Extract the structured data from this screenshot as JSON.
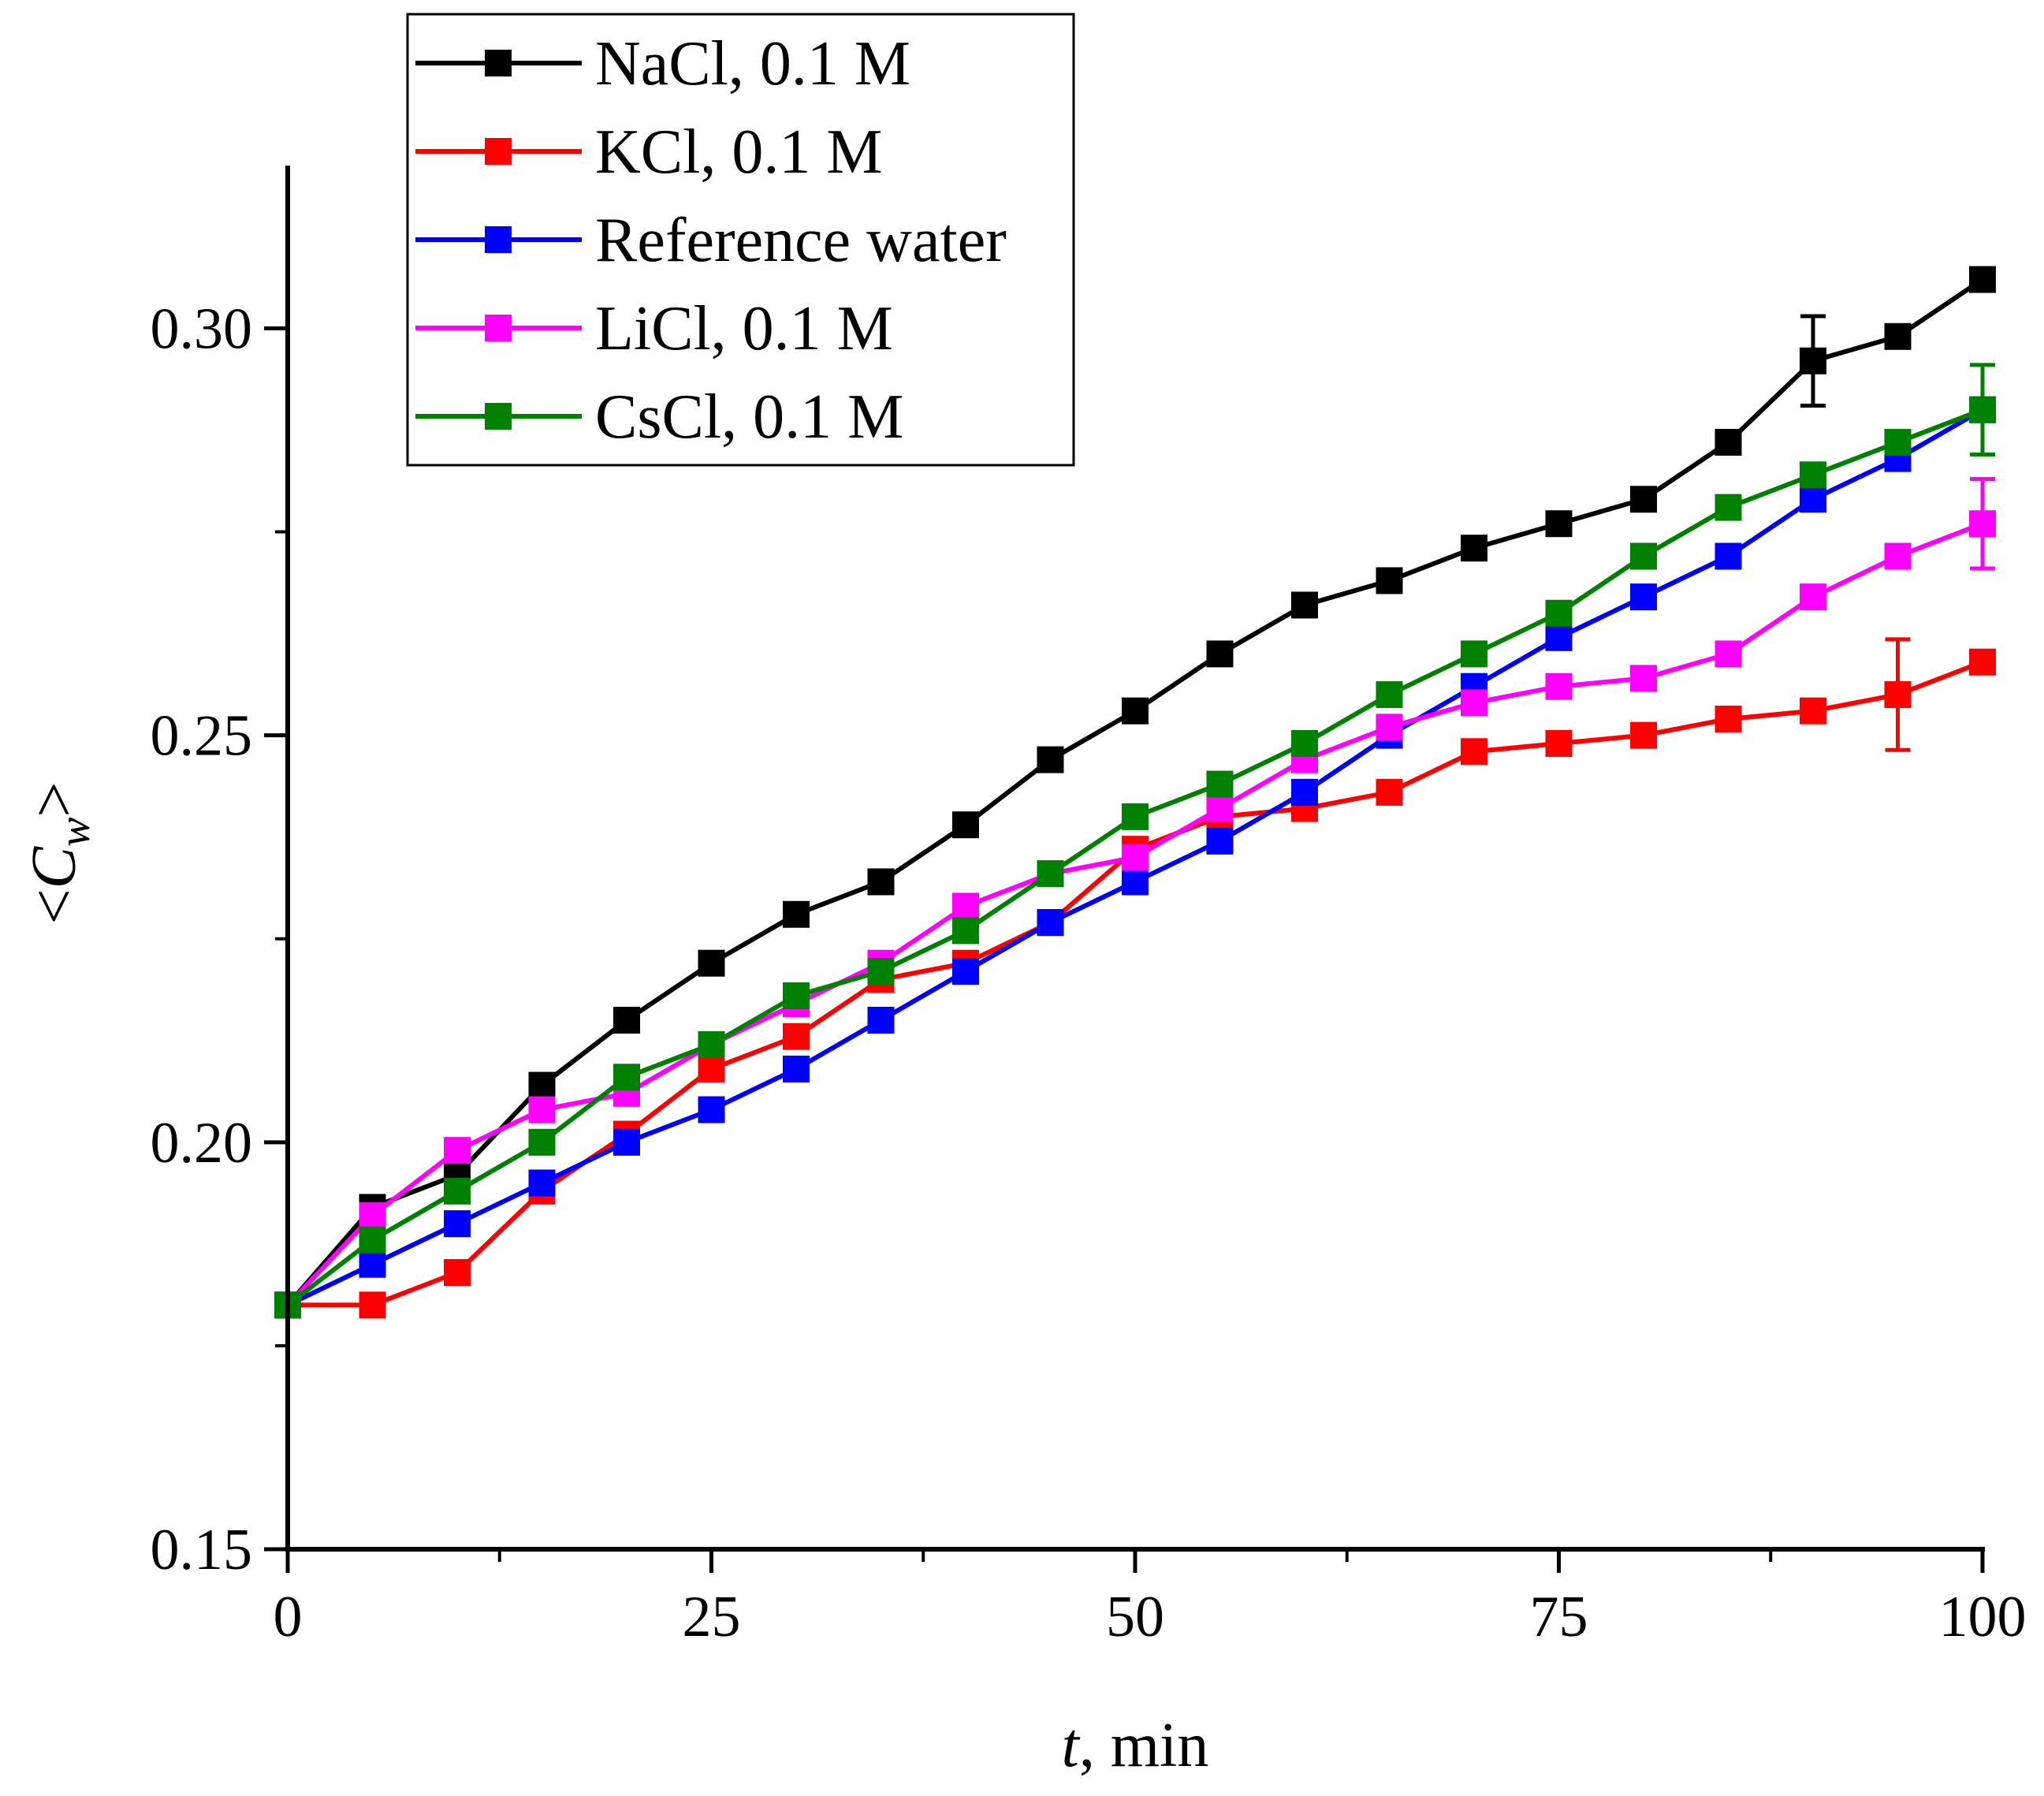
{
  "chart_data": {
    "type": "line",
    "title": "",
    "xlabel_var": "t",
    "xlabel_rest": ", min",
    "ylabel_open": "<",
    "ylabel_var": "C",
    "ylabel_sub": "w",
    "ylabel_close": ">",
    "xlim": [
      0,
      100
    ],
    "ylim": [
      0.15,
      0.32
    ],
    "xticks": [
      0,
      25,
      50,
      75,
      100
    ],
    "xtick_labels": [
      "0",
      "25",
      "50",
      "75",
      "100"
    ],
    "yticks": [
      0.15,
      0.2,
      0.25,
      0.3
    ],
    "ytick_labels": [
      "0.15",
      "0.20",
      "0.25",
      "0.30"
    ],
    "legend_position": "top-left",
    "grid": false,
    "x": [
      0,
      5,
      10,
      15,
      20,
      25,
      30,
      35,
      40,
      45,
      50,
      55,
      60,
      65,
      70,
      75,
      80,
      85,
      90,
      95,
      100
    ],
    "series": [
      {
        "name": "NaCl, 0.1 M",
        "color": "#000000",
        "values": [
          0.18,
          0.192,
          0.196,
          0.207,
          0.215,
          0.222,
          0.228,
          0.232,
          0.239,
          0.247,
          0.253,
          0.26,
          0.266,
          0.269,
          0.273,
          0.276,
          0.279,
          0.286,
          0.296,
          0.299,
          0.306
        ],
        "errors": [
          {
            "x": 90,
            "err": 0.0055
          }
        ]
      },
      {
        "name": "KCl, 0.1 M",
        "color": "#ff0000",
        "values": [
          0.18,
          0.18,
          0.184,
          0.194,
          0.201,
          0.209,
          0.213,
          0.22,
          0.222,
          0.227,
          0.236,
          0.24,
          0.241,
          0.243,
          0.248,
          0.249,
          0.25,
          0.252,
          0.253,
          0.255,
          0.259
        ],
        "errors": [
          {
            "x": 95,
            "err": 0.0068
          }
        ]
      },
      {
        "name": "Reference water",
        "color": "#0000ff",
        "values": [
          0.18,
          0.185,
          0.19,
          0.195,
          0.2,
          0.204,
          0.209,
          0.215,
          0.221,
          0.227,
          0.232,
          0.237,
          0.243,
          0.25,
          0.256,
          0.262,
          0.267,
          0.272,
          0.279,
          0.284,
          0.29
        ],
        "errors": []
      },
      {
        "name": "LiCl, 0.1 M",
        "color": "#ff00ff",
        "values": [
          0.18,
          0.191,
          0.199,
          0.204,
          0.206,
          0.212,
          0.217,
          0.222,
          0.229,
          0.233,
          0.235,
          0.241,
          0.247,
          0.251,
          0.254,
          0.256,
          0.257,
          0.26,
          0.267,
          0.272,
          0.276
        ],
        "errors": [
          {
            "x": 100,
            "err": 0.0055
          }
        ]
      },
      {
        "name": "CsCl, 0.1 M",
        "color": "#008000",
        "values": [
          0.18,
          0.188,
          0.194,
          0.2,
          0.208,
          0.212,
          0.218,
          0.221,
          0.226,
          0.233,
          0.24,
          0.244,
          0.249,
          0.255,
          0.26,
          0.265,
          0.272,
          0.278,
          0.282,
          0.286,
          0.29
        ],
        "errors": [
          {
            "x": 100,
            "err": 0.0055
          }
        ]
      }
    ]
  }
}
